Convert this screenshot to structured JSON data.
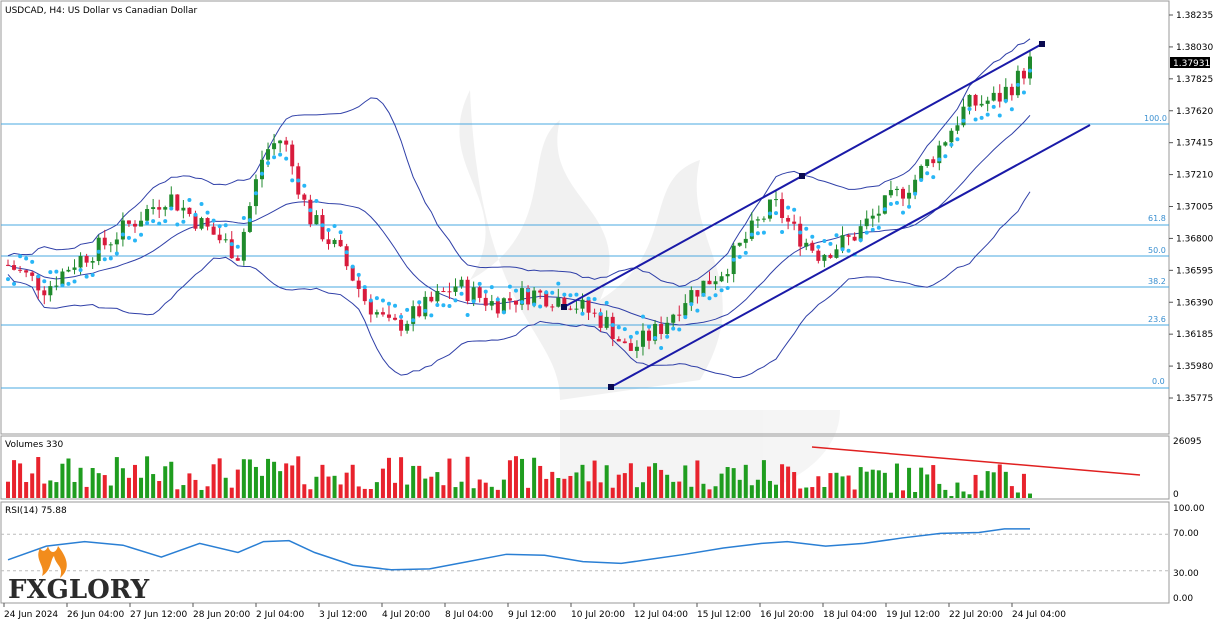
{
  "header": {
    "title": "USDCAD, H4:  US Dollar vs Canadian Dollar"
  },
  "volume_panel": {
    "label": "Volumes 330",
    "scale_max": "26095",
    "scale_min": "0"
  },
  "rsi_panel": {
    "label": "RSI(14) 75.88",
    "levels": [
      "100.00",
      "70.00",
      "30.00",
      "0.00"
    ]
  },
  "fib_labels": [
    "100.0",
    "61.8",
    "50.0",
    "38.2",
    "23.6",
    "0.0"
  ],
  "price_axis": [
    "1.38235",
    "1.38030",
    "1.37825",
    "1.37620",
    "1.37415",
    "1.37210",
    "1.37005",
    "1.36800",
    "1.36595",
    "1.36390",
    "1.36185",
    "1.35980",
    "1.35775"
  ],
  "current_price": "1.37931",
  "time_axis": [
    "24 Jun 2024",
    "26 Jun 04:00",
    "27 Jun 12:00",
    "28 Jun 20:00",
    "2 Jul 04:00",
    "3 Jul 12:00",
    "4 Jul 20:00",
    "8 Jul 04:00",
    "9 Jul 12:00",
    "10 Jul 20:00",
    "12 Jul 04:00",
    "15 Jul 12:00",
    "16 Jul 20:00",
    "18 Jul 04:00",
    "19 Jul 12:00",
    "22 Jul 20:00",
    "24 Jul 04:00"
  ],
  "logo": {
    "text": "FXGLORY"
  },
  "colors": {
    "bull": "#1f8a2c",
    "bear": "#d81b3c",
    "vol_up": "#1f9d1f",
    "vol_down": "#e8232d",
    "bands": "#3040a8",
    "sar": "#29b6f6",
    "channel": "#1a1aa8",
    "fib": "#4aa8e0",
    "rsi": "#2a7fd4",
    "vol_trend": "#e02020"
  },
  "chart_data": [
    {
      "type": "candlestick",
      "title": "USDCAD, H4:  US Dollar vs Canadian Dollar",
      "x": [
        "24 Jun 2024",
        "26 Jun 04:00",
        "27 Jun 12:00",
        "28 Jun 20:00",
        "2 Jul 04:00",
        "3 Jul 12:00",
        "4 Jul 20:00",
        "8 Jul 04:00",
        "9 Jul 12:00",
        "10 Jul 20:00",
        "12 Jul 04:00",
        "15 Jul 12:00",
        "16 Jul 20:00",
        "18 Jul 04:00",
        "19 Jul 12:00",
        "22 Jul 20:00",
        "24 Jul 04:00"
      ],
      "ylim": [
        1.3567,
        1.3832
      ],
      "grid": false,
      "last_price": 1.37931,
      "close_path": [
        {
          "x": 0.0,
          "y": 1.3663
        },
        {
          "x": 0.6,
          "y": 1.3648
        },
        {
          "x": 1.0,
          "y": 1.3664
        },
        {
          "x": 1.5,
          "y": 1.3676
        },
        {
          "x": 2.0,
          "y": 1.3692
        },
        {
          "x": 2.5,
          "y": 1.3708
        },
        {
          "x": 3.0,
          "y": 1.369
        },
        {
          "x": 3.6,
          "y": 1.367
        },
        {
          "x": 4.0,
          "y": 1.3735
        },
        {
          "x": 4.3,
          "y": 1.3745
        },
        {
          "x": 4.7,
          "y": 1.3695
        },
        {
          "x": 5.2,
          "y": 1.367
        },
        {
          "x": 5.6,
          "y": 1.364
        },
        {
          "x": 6.0,
          "y": 1.3622
        },
        {
          "x": 6.4,
          "y": 1.3632
        },
        {
          "x": 7.0,
          "y": 1.365
        },
        {
          "x": 7.6,
          "y": 1.3638
        },
        {
          "x": 8.2,
          "y": 1.3645
        },
        {
          "x": 8.8,
          "y": 1.364
        },
        {
          "x": 9.4,
          "y": 1.3625
        },
        {
          "x": 9.7,
          "y": 1.3607
        },
        {
          "x": 10.2,
          "y": 1.3622
        },
        {
          "x": 10.6,
          "y": 1.3642
        },
        {
          "x": 11.2,
          "y": 1.366
        },
        {
          "x": 11.7,
          "y": 1.3688
        },
        {
          "x": 12.0,
          "y": 1.3702
        },
        {
          "x": 12.3,
          "y": 1.3685
        },
        {
          "x": 12.7,
          "y": 1.367
        },
        {
          "x": 13.2,
          "y": 1.368
        },
        {
          "x": 13.7,
          "y": 1.37
        },
        {
          "x": 14.2,
          "y": 1.3718
        },
        {
          "x": 14.6,
          "y": 1.374
        },
        {
          "x": 15.0,
          "y": 1.3765
        },
        {
          "x": 15.5,
          "y": 1.377
        },
        {
          "x": 15.8,
          "y": 1.3782
        },
        {
          "x": 16.0,
          "y": 1.3793
        }
      ]
    },
    {
      "type": "bar",
      "title": "Volumes 330",
      "ylim": [
        0,
        26095
      ],
      "trend": "declining"
    },
    {
      "type": "line",
      "title": "RSI(14) 75.88",
      "ylim": [
        0,
        100
      ],
      "levels": [
        70,
        30
      ],
      "last_value": 75.88,
      "x": [
        0,
        0.6,
        1.2,
        1.8,
        2.4,
        3.0,
        3.6,
        4.0,
        4.4,
        4.8,
        5.4,
        6.0,
        6.6,
        7.2,
        7.8,
        8.4,
        9.0,
        9.6,
        10.0,
        10.6,
        11.2,
        11.8,
        12.2,
        12.8,
        13.4,
        14.0,
        14.6,
        15.2,
        15.6,
        16.0
      ],
      "values": [
        42,
        57,
        62,
        58,
        45,
        60,
        50,
        62,
        63,
        50,
        36,
        31,
        32,
        40,
        48,
        47,
        40,
        38,
        42,
        48,
        55,
        60,
        62,
        57,
        60,
        66,
        71,
        72,
        76,
        76
      ]
    }
  ]
}
